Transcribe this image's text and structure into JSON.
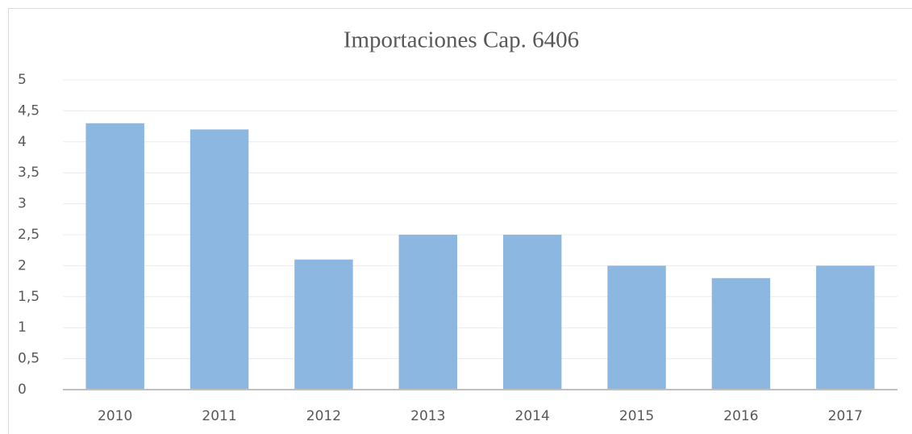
{
  "chart_data": {
    "type": "bar",
    "title": "Importaciones Cap. 6406",
    "categories": [
      "2010",
      "2011",
      "2012",
      "2013",
      "2014",
      "2015",
      "2016",
      "2017"
    ],
    "values": [
      4.3,
      4.2,
      2.1,
      2.5,
      2.5,
      2.0,
      1.8,
      2.0
    ],
    "color": "#8cb7e1",
    "ylim": [
      0,
      5
    ],
    "yticks": [
      0,
      {
        "value": 0.5,
        "label": "0,5"
      },
      1,
      {
        "value": 1.5,
        "label": "1,5"
      },
      2,
      {
        "value": 2.5,
        "label": "2,5"
      },
      3,
      {
        "value": 3.5,
        "label": "3,5"
      },
      4,
      {
        "value": 4.5,
        "label": "4,5"
      },
      5
    ],
    "grid": true
  }
}
